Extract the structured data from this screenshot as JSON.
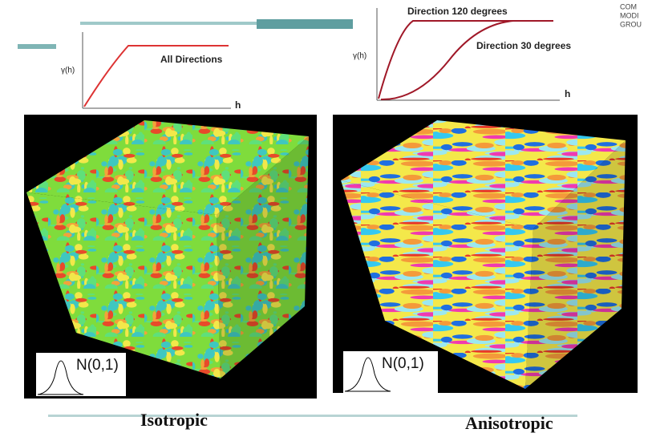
{
  "slide": {
    "logo": [
      "COM",
      "MODI",
      "GROU"
    ],
    "isotropic": {
      "y_label": "γ(h)",
      "x_label": "h",
      "curve_label": "All Directions",
      "distribution": "N(0,1)",
      "caption": "Isotropic"
    },
    "anisotropic": {
      "y_label": "γ(h)",
      "x_label": "h",
      "curve_labels": [
        "Direction 120 degrees",
        "Direction 30 degrees"
      ],
      "distribution": "N(0,1)",
      "caption": "Anisotropic"
    }
  }
}
